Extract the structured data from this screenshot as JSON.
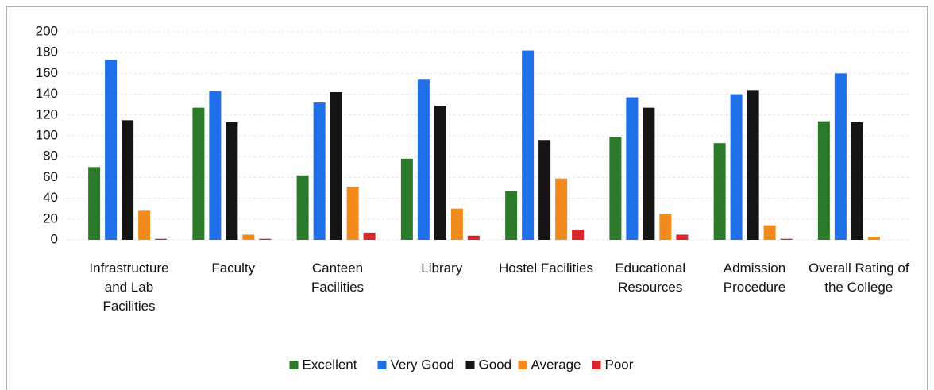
{
  "chart_data": {
    "type": "bar",
    "categories": [
      "Infrastructure and Lab Facilities",
      "Faculty",
      "Canteen Facilities",
      "Library",
      "Hostel Facilities",
      "Educational Resources",
      "Admission Procedure",
      "Overall Rating of the College"
    ],
    "series": [
      {
        "name": "Excellent",
        "color": "#2a7a2a",
        "values": [
          70,
          127,
          62,
          78,
          47,
          99,
          93,
          114
        ]
      },
      {
        "name": "Very Good",
        "color": "#1f6fe8",
        "values": [
          173,
          143,
          132,
          154,
          182,
          137,
          140,
          160
        ]
      },
      {
        "name": "Good",
        "color": "#151515",
        "values": [
          115,
          113,
          142,
          129,
          96,
          127,
          144,
          113
        ]
      },
      {
        "name": "Average",
        "color": "#f28b1c",
        "values": [
          28,
          5,
          51,
          30,
          59,
          25,
          14,
          3
        ]
      },
      {
        "name": "Poor",
        "color": "#d8262c",
        "values": [
          1,
          1,
          7,
          4,
          10,
          5,
          1,
          0
        ]
      }
    ],
    "ylim": [
      0,
      200
    ],
    "yticks": [
      0,
      20,
      40,
      60,
      80,
      100,
      120,
      140,
      160,
      180,
      200
    ],
    "grid": true,
    "legend": "bottom"
  }
}
